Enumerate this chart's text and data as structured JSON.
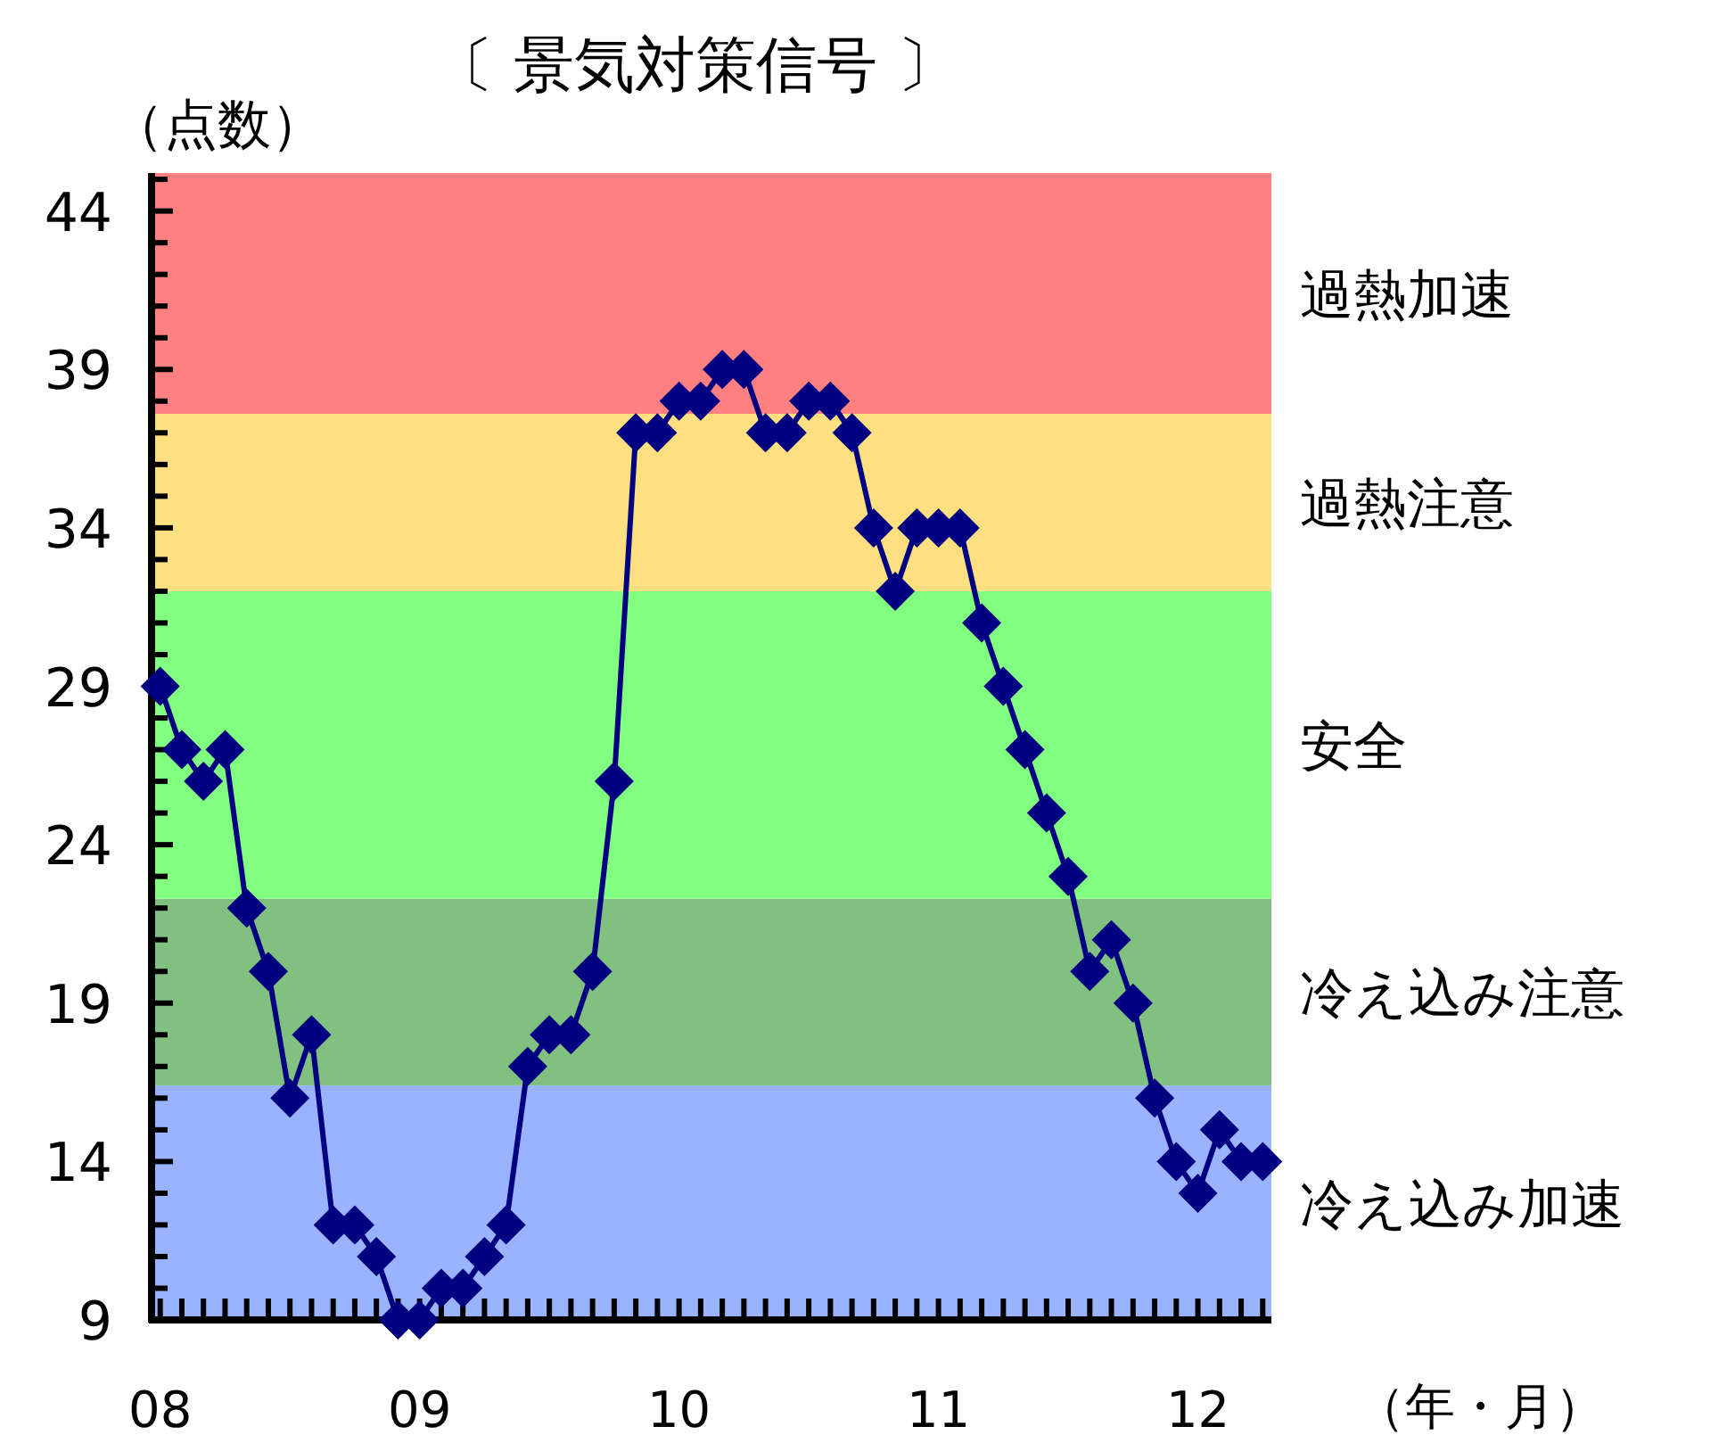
{
  "chart_data": {
    "type": "line",
    "title": "〔 景気対策信号 〕",
    "ylabel": "（点数）",
    "xlabel": "（年・月）",
    "categories": [
      "08",
      null,
      null,
      null,
      null,
      null,
      null,
      null,
      null,
      null,
      null,
      null,
      "09",
      null,
      null,
      null,
      null,
      null,
      null,
      null,
      null,
      null,
      null,
      null,
      "10",
      null,
      null,
      null,
      null,
      null,
      null,
      null,
      null,
      null,
      null,
      null,
      "11",
      null,
      null,
      null,
      null,
      null,
      null,
      null,
      null,
      null,
      null,
      null,
      "12",
      null,
      null,
      null
    ],
    "series": [
      {
        "color": "#000080",
        "values": [
          29,
          27,
          26,
          27,
          22,
          20,
          16,
          18,
          12,
          12,
          11,
          9,
          9,
          10,
          10,
          11,
          12,
          17,
          18,
          18,
          20,
          26,
          37,
          37,
          38,
          38,
          39,
          39,
          37,
          37,
          38,
          38,
          37,
          34,
          32,
          34,
          34,
          34,
          31,
          29,
          27,
          25,
          23,
          20,
          21,
          19,
          16,
          14,
          13,
          15,
          14,
          14
        ]
      }
    ],
    "marker": "diamond",
    "line_style": "solid",
    "grid": false,
    "ylim": [
      9,
      45.2
    ],
    "yticks": [
      9,
      {
        "value": 10,
        "label": null
      },
      {
        "value": 11,
        "label": null
      },
      {
        "value": 12,
        "label": null
      },
      {
        "value": 13,
        "label": null
      },
      14,
      {
        "value": 15,
        "label": null
      },
      {
        "value": 16,
        "label": null
      },
      {
        "value": 17,
        "label": null
      },
      {
        "value": 18,
        "label": null
      },
      19,
      {
        "value": 20,
        "label": null
      },
      {
        "value": 21,
        "label": null
      },
      {
        "value": 22,
        "label": null
      },
      {
        "value": 23,
        "label": null
      },
      24,
      {
        "value": 25,
        "label": null
      },
      {
        "value": 26,
        "label": null
      },
      {
        "value": 27,
        "label": null
      },
      {
        "value": 28,
        "label": null
      },
      29,
      {
        "value": 30,
        "label": null
      },
      {
        "value": 31,
        "label": null
      },
      {
        "value": 32,
        "label": null
      },
      {
        "value": 33,
        "label": null
      },
      34,
      {
        "value": 35,
        "label": null
      },
      {
        "value": 36,
        "label": null
      },
      {
        "value": 37,
        "label": null
      },
      {
        "value": 38,
        "label": null
      },
      39,
      {
        "value": 40,
        "label": null
      },
      {
        "value": 41,
        "label": null
      },
      {
        "value": 42,
        "label": null
      },
      {
        "value": 43,
        "label": null
      },
      44,
      {
        "value": 45,
        "label": null
      }
    ],
    "bands": [
      {
        "axis": "y",
        "from": 9,
        "to": 16.4,
        "label": "冷え込み加速",
        "color": "#99b3ff"
      },
      {
        "axis": "y",
        "from": 16.4,
        "to": 22.3,
        "label": "冷え込み注意",
        "color": "#80c080"
      },
      {
        "axis": "y",
        "from": 22.3,
        "to": 32,
        "label": "安全",
        "color": "#80ff80"
      },
      {
        "axis": "y",
        "from": 32,
        "to": 37.6,
        "label": "過熱注意",
        "color": "#ffe080"
      },
      {
        "axis": "y",
        "from": 37.6,
        "to": 45.2,
        "label": "過熱加速",
        "color": "#ff8080"
      }
    ]
  }
}
